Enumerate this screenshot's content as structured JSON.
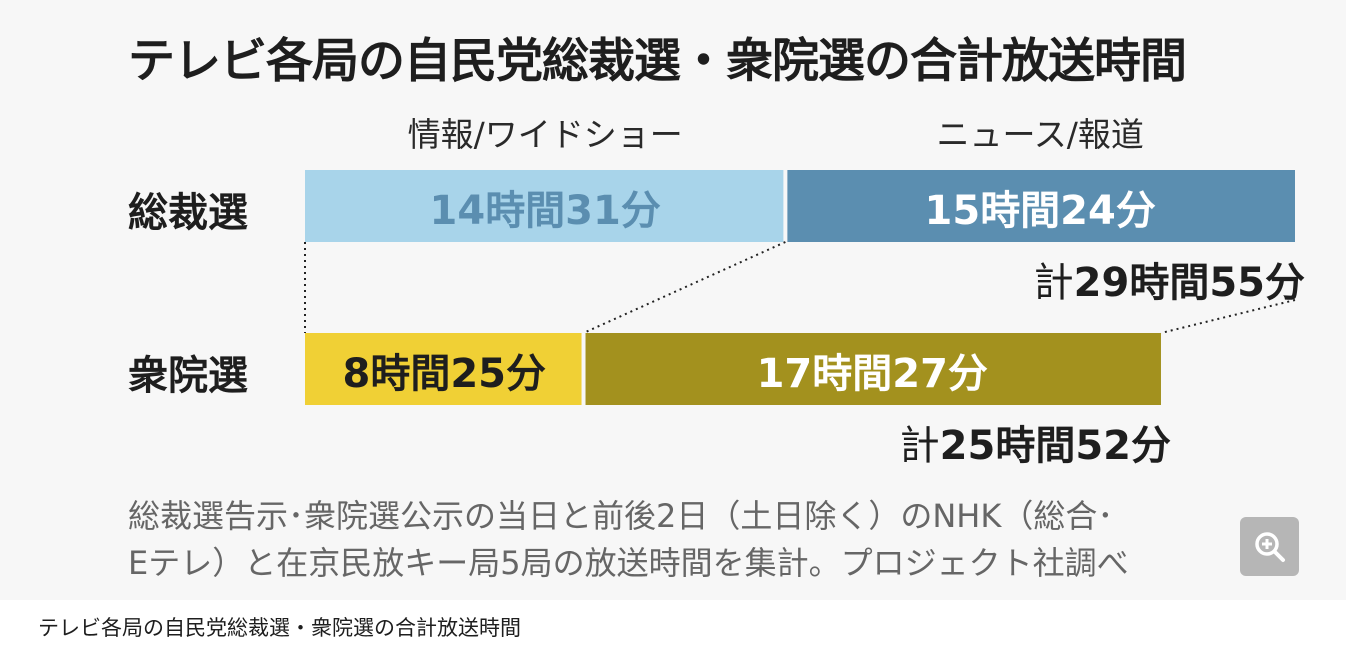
{
  "chart_data": {
    "type": "bar",
    "stacked": true,
    "orientation": "horizontal",
    "title": "テレビ各局の自民党総裁選・衆院選の合計放送時間",
    "categories": [
      "総裁選",
      "衆院選"
    ],
    "unit": "minutes",
    "series": [
      {
        "name": "情報/ワイドショー",
        "values": [
          871,
          505
        ],
        "labels": [
          "14時間31分",
          "8時間25分"
        ],
        "colors": [
          "#a8d4ea",
          "#f0d035"
        ]
      },
      {
        "name": "ニュース/報道",
        "values": [
          924,
          1047
        ],
        "labels": [
          "15時間24分",
          "17時間27分"
        ],
        "colors": [
          "#5b8eb0",
          "#a3911e"
        ]
      }
    ],
    "totals": [
      {
        "prefix": "計",
        "value": 1795,
        "label": "29時間55分"
      },
      {
        "prefix": "計",
        "value": 1552,
        "label": "25時間52分"
      }
    ],
    "legend_placement": "top",
    "grid": false,
    "notes": [
      "総裁選告示･衆院選公示の当日と前後2日（土日除く）のNHK（総合･",
      "Eテレ）と在京民放キー局5局の放送時間を集計。プロジェクト社調べ"
    ]
  },
  "caption": "テレビ各局の自民党総裁選・衆院選の合計放送時間",
  "zoom_icon": "zoom-in-icon",
  "colors": {
    "connector": "#222222",
    "label_dark": "#5b8eb0",
    "label_light": "#ffffff"
  }
}
